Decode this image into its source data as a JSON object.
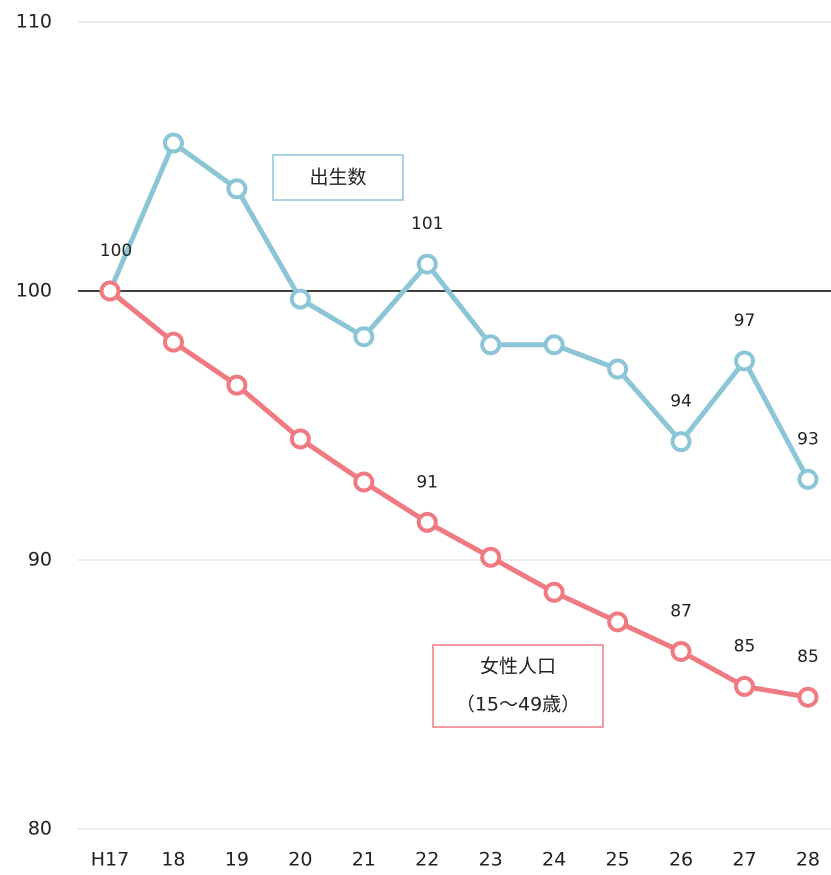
{
  "chart_data": {
    "type": "line",
    "categories": [
      "H17",
      "18",
      "19",
      "20",
      "21",
      "22",
      "23",
      "24",
      "25",
      "26",
      "27",
      "28"
    ],
    "series": [
      {
        "name": "出生数",
        "color": "#8cc6d6",
        "values": [
          100,
          105.5,
          103.8,
          99.7,
          98.3,
          101.0,
          98.0,
          98.0,
          97.1,
          94.4,
          97.4,
          93.0
        ],
        "value_labels": [
          "100",
          null,
          null,
          null,
          null,
          "101",
          null,
          null,
          null,
          "94",
          "97",
          "93"
        ]
      },
      {
        "name": "女性人口",
        "name_note": "（15〜49歳）",
        "color": "#f07a82",
        "values": [
          100,
          98.1,
          96.5,
          94.5,
          92.9,
          91.4,
          90.1,
          88.8,
          87.7,
          86.6,
          85.3,
          84.9
        ],
        "value_labels": [
          null,
          null,
          null,
          null,
          null,
          "91",
          null,
          null,
          null,
          "87",
          "85",
          "85"
        ]
      }
    ],
    "ylim": [
      80,
      110
    ],
    "yticks": [
      80,
      90,
      100,
      110
    ],
    "grid": true,
    "reference_line": 100
  }
}
